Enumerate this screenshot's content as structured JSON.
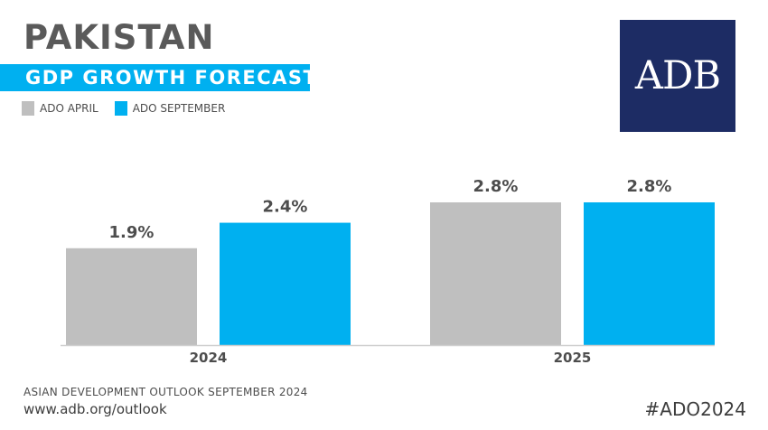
{
  "header": {
    "country": "PAKISTAN",
    "subtitle": "GDP GROWTH FORECAST"
  },
  "logo": {
    "text": "ADB",
    "background": "#1d2c64"
  },
  "legend": [
    {
      "label": "ADO APRIL",
      "color": "#bfbfbf"
    },
    {
      "label": "ADO SEPTEMBER",
      "color": "#00b0f0"
    }
  ],
  "chart_data": {
    "type": "bar",
    "categories": [
      "2024",
      "2025"
    ],
    "series": [
      {
        "name": "ADO APRIL",
        "values": [
          1.9,
          2.8
        ],
        "labels": [
          "1.9%",
          "2.8%"
        ],
        "color": "#bfbfbf"
      },
      {
        "name": "ADO SEPTEMBER",
        "values": [
          2.4,
          2.8
        ],
        "labels": [
          "2.4%",
          "2.8%"
        ],
        "color": "#00b0f0"
      }
    ],
    "ylim": [
      0,
      3
    ],
    "grid": false,
    "legend_position": "top-left"
  },
  "footer": {
    "source": "ASIAN DEVELOPMENT OUTLOOK SEPTEMBER 2024",
    "url": "www.adb.org/outlook",
    "hashtag": "#ADO2024"
  }
}
